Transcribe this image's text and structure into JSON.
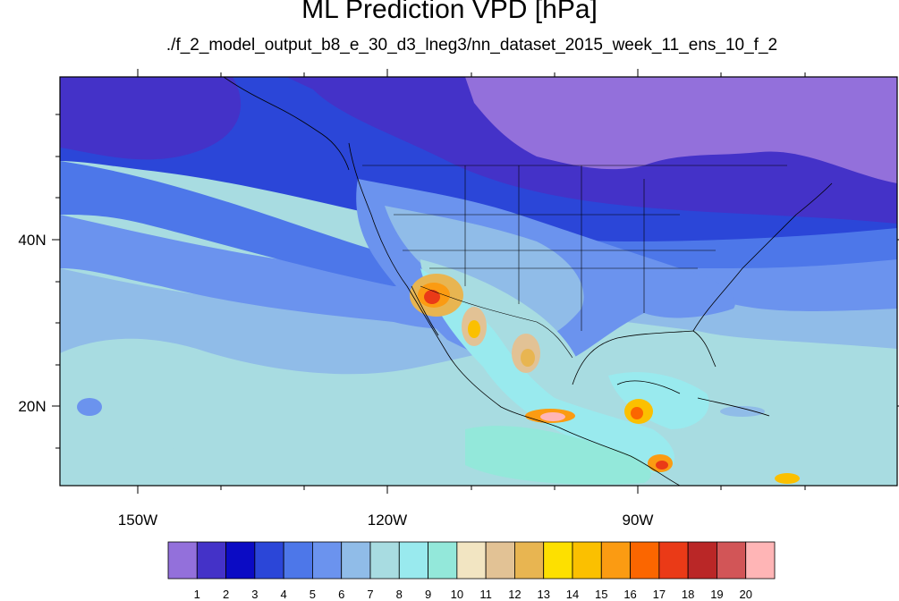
{
  "title": "ML Prediction VPD [hPa]",
  "subtitle": "./f_2_model_output_b8_e_30_d3_lneg3/nn_dataset_2015_week_11_ens_10_f_2",
  "map": {
    "lon_range": [
      -160,
      -60
    ],
    "lat_range": [
      10,
      59
    ],
    "lon_ticks": [
      {
        "value": -150,
        "label": "150W"
      },
      {
        "value": -120,
        "label": "120W"
      },
      {
        "value": -90,
        "label": "90W"
      }
    ],
    "lat_ticks": [
      {
        "value": 20,
        "label": "20N"
      },
      {
        "value": 40,
        "label": "40N"
      }
    ]
  },
  "colorbar": {
    "colors": [
      "#9370db",
      "#4432c8",
      "#0b0bc4",
      "#2b46d8",
      "#4d77e9",
      "#6b93ee",
      "#90bce8",
      "#a8dce1",
      "#99eaee",
      "#93e8da",
      "#f2e5c2",
      "#e2c295",
      "#e8b551",
      "#fde000",
      "#fbc000",
      "#fb9b12",
      "#fb6600",
      "#ea3a17",
      "#ba2727",
      "#d25557",
      "#ffb5b6"
    ],
    "labels": [
      "1",
      "2",
      "3",
      "4",
      "5",
      "6",
      "7",
      "8",
      "9",
      "10",
      "11",
      "12",
      "13",
      "14",
      "15",
      "16",
      "17",
      "18",
      "19",
      "20"
    ]
  }
}
